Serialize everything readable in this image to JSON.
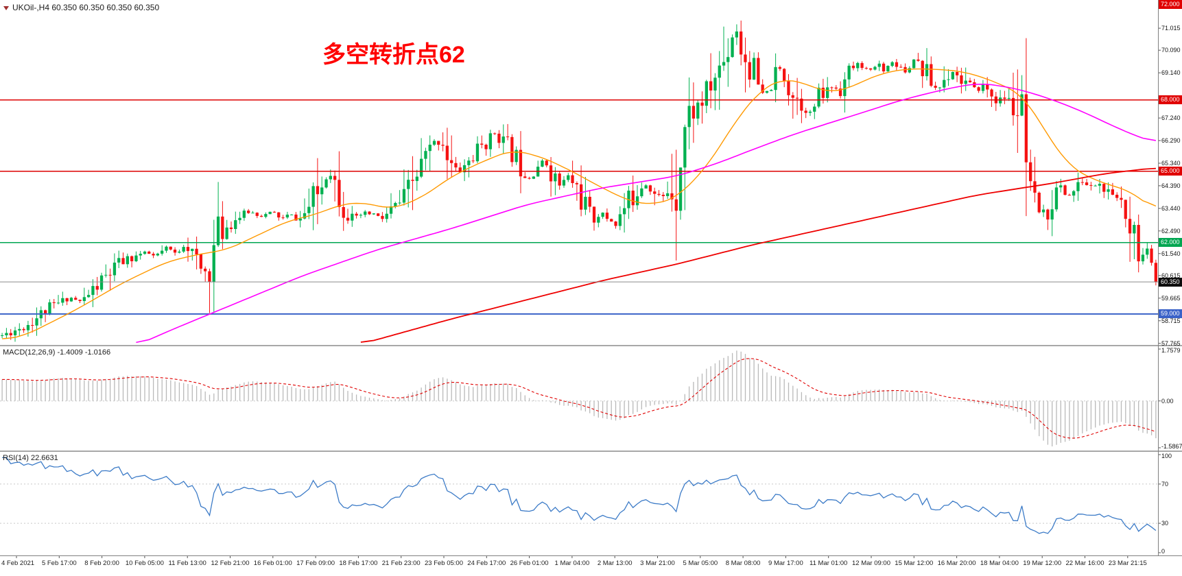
{
  "title_bar": {
    "symbol_title": "UKOil-,H4 60.350 60.350 60.350 60.350"
  },
  "annotation": {
    "text": "多空转折点62",
    "color": "#ff0000"
  },
  "colors": {
    "up": "#00b050",
    "down": "#f51212",
    "macd_hist": "#b9b9b9",
    "macd_signal": "#e00000",
    "rsi_line": "#3c7bc7",
    "bid_line": "#8a8a8a",
    "level_dotted": "#c8c8c8",
    "axis_tick": "#555555",
    "badge_black": "#0d0d0d"
  },
  "main_axis": {
    "labels": [
      {
        "text": "71.015",
        "price": 71.015
      },
      {
        "text": "70.090",
        "price": 70.09
      },
      {
        "text": "69.140",
        "price": 69.14
      },
      {
        "text": "67.240",
        "price": 67.24
      },
      {
        "text": "66.290",
        "price": 66.29
      },
      {
        "text": "65.340",
        "price": 65.34
      },
      {
        "text": "64.390",
        "price": 64.39
      },
      {
        "text": "63.440",
        "price": 63.44
      },
      {
        "text": "62.490",
        "price": 62.49
      },
      {
        "text": "61.540",
        "price": 61.54
      },
      {
        "text": "60.615",
        "price": 60.615
      },
      {
        "text": "59.665",
        "price": 59.665
      },
      {
        "text": "58.715",
        "price": 58.715
      },
      {
        "text": "57.765",
        "price": 57.765
      }
    ],
    "badges": [
      {
        "text": "72.000",
        "price": 72.0,
        "color": "#e00000"
      },
      {
        "text": "68.000",
        "price": 68.0,
        "color": "#e00000"
      },
      {
        "text": "65.000",
        "price": 65.0,
        "color": "#e00000"
      },
      {
        "text": "62.000",
        "price": 62.0,
        "color": "#00a651"
      },
      {
        "text": "60.350",
        "price": 60.35,
        "color": "#0d0d0d"
      },
      {
        "text": "59.000",
        "price": 59.0,
        "color": "#3a62c8"
      }
    ]
  },
  "macd_panel": {
    "label": "MACD(12,26,9) -1.4009 -1.0166",
    "axis_labels": [
      {
        "text": "1.7579",
        "value": 1.7579
      },
      {
        "text": "0.00",
        "value": 0
      },
      {
        "text": "-1.5867",
        "value": -1.5867
      }
    ]
  },
  "rsi_panel": {
    "label": "RSI(14) 22.6631",
    "axis_labels": [
      {
        "text": "100",
        "value": 100
      },
      {
        "text": "70",
        "value": 70
      },
      {
        "text": "30",
        "value": 30
      },
      {
        "text": "0",
        "value": 0
      }
    ]
  },
  "time_axis": {
    "labels": [
      "4 Feb 2021",
      "5 Feb 17:00",
      "8 Feb 20:00",
      "10 Feb 05:00",
      "11 Feb 13:00",
      "12 Feb 21:00",
      "16 Feb 01:00",
      "17 Feb 09:00",
      "18 Feb 17:00",
      "21 Feb 23:00",
      "23 Feb 05:00",
      "24 Feb 17:00",
      "26 Feb 01:00",
      "1 Mar 04:00",
      "2 Mar 13:00",
      "3 Mar 21:00",
      "5 Mar 05:00",
      "8 Mar 08:00",
      "9 Mar 17:00",
      "11 Mar 01:00",
      "12 Mar 09:00",
      "15 Mar 12:00",
      "16 Mar 20:00",
      "18 Mar 04:00",
      "19 Mar 12:00",
      "22 Mar 16:00",
      "23 Mar 21:15"
    ]
  },
  "chart_data": {
    "type": "candlestick",
    "symbol": "UKOil-",
    "timeframe": "H4",
    "bar_count": 268,
    "ylim": [
      57.7,
      72.2
    ],
    "current_price": 60.35,
    "price_path": [
      [
        0,
        58.1
      ],
      [
        0.005,
        58.2
      ],
      [
        0.02,
        58.5
      ],
      [
        0.039,
        59.2
      ],
      [
        0.059,
        59.7
      ],
      [
        0.068,
        59.5
      ],
      [
        0.085,
        60.3
      ],
      [
        0.101,
        61.1
      ],
      [
        0.114,
        61.4
      ],
      [
        0.124,
        61.6
      ],
      [
        0.133,
        61.4
      ],
      [
        0.143,
        61.8
      ],
      [
        0.151,
        61.5
      ],
      [
        0.159,
        62.0
      ],
      [
        0.168,
        61.2
      ],
      [
        0.174,
        60.7
      ],
      [
        0.18,
        61.0
      ],
      [
        0.187,
        62.4
      ],
      [
        0.195,
        62.7
      ],
      [
        0.205,
        63.1
      ],
      [
        0.215,
        63.3
      ],
      [
        0.224,
        63.1
      ],
      [
        0.234,
        63.3
      ],
      [
        0.242,
        63.0
      ],
      [
        0.25,
        63.2
      ],
      [
        0.257,
        62.9
      ],
      [
        0.265,
        63.4
      ],
      [
        0.275,
        64.2
      ],
      [
        0.283,
        65.1
      ],
      [
        0.291,
        64.3
      ],
      [
        0.298,
        63.5
      ],
      [
        0.304,
        62.9
      ],
      [
        0.312,
        63.2
      ],
      [
        0.322,
        63.2
      ],
      [
        0.33,
        63.0
      ],
      [
        0.338,
        63.4
      ],
      [
        0.348,
        63.8
      ],
      [
        0.357,
        64.6
      ],
      [
        0.366,
        65.5
      ],
      [
        0.374,
        66.1
      ],
      [
        0.382,
        66.3
      ],
      [
        0.388,
        65.3
      ],
      [
        0.395,
        64.9
      ],
      [
        0.402,
        65.3
      ],
      [
        0.41,
        65.7
      ],
      [
        0.418,
        66.2
      ],
      [
        0.427,
        66.6
      ],
      [
        0.435,
        66.2
      ],
      [
        0.442,
        65.8
      ],
      [
        0.45,
        65.2
      ],
      [
        0.457,
        64.7
      ],
      [
        0.463,
        65.2
      ],
      [
        0.47,
        65.5
      ],
      [
        0.477,
        64.9
      ],
      [
        0.483,
        64.4
      ],
      [
        0.491,
        64.8
      ],
      [
        0.498,
        64.3
      ],
      [
        0.506,
        63.5
      ],
      [
        0.512,
        62.9
      ],
      [
        0.519,
        63.3
      ],
      [
        0.525,
        63.0
      ],
      [
        0.532,
        62.8
      ],
      [
        0.539,
        63.4
      ],
      [
        0.546,
        63.9
      ],
      [
        0.553,
        64.4
      ],
      [
        0.56,
        64.5
      ],
      [
        0.566,
        64.0
      ],
      [
        0.573,
        63.9
      ],
      [
        0.579,
        64.3
      ],
      [
        0.584,
        64.4
      ],
      [
        0.589,
        66.2
      ],
      [
        0.593,
        67.2
      ],
      [
        0.6,
        67.6
      ],
      [
        0.606,
        67.9
      ],
      [
        0.613,
        68.4
      ],
      [
        0.619,
        69.1
      ],
      [
        0.626,
        69.7
      ],
      [
        0.632,
        70.6
      ],
      [
        0.636,
        71.1
      ],
      [
        0.64,
        70.2
      ],
      [
        0.644,
        69.8
      ],
      [
        0.649,
        69.4
      ],
      [
        0.655,
        68.6
      ],
      [
        0.661,
        68.0
      ],
      [
        0.668,
        68.9
      ],
      [
        0.674,
        69.3
      ],
      [
        0.681,
        68.7
      ],
      [
        0.687,
        68.2
      ],
      [
        0.694,
        67.8
      ],
      [
        0.7,
        67.4
      ],
      [
        0.707,
        68.0
      ],
      [
        0.713,
        68.3
      ],
      [
        0.72,
        68.6
      ],
      [
        0.726,
        68.4
      ],
      [
        0.733,
        69.0
      ],
      [
        0.739,
        69.5
      ],
      [
        0.746,
        69.4
      ],
      [
        0.752,
        69.2
      ],
      [
        0.759,
        69.5
      ],
      [
        0.765,
        69.3
      ],
      [
        0.772,
        69.6
      ],
      [
        0.778,
        69.4
      ],
      [
        0.785,
        69.2
      ],
      [
        0.791,
        69.8
      ],
      [
        0.798,
        69.3
      ],
      [
        0.804,
        68.8
      ],
      [
        0.811,
        68.4
      ],
      [
        0.817,
        68.9
      ],
      [
        0.824,
        69.2
      ],
      [
        0.83,
        68.9
      ],
      [
        0.837,
        68.7
      ],
      [
        0.843,
        68.4
      ],
      [
        0.85,
        68.6
      ],
      [
        0.856,
        68.3
      ],
      [
        0.863,
        67.9
      ],
      [
        0.869,
        68.1
      ],
      [
        0.876,
        67.8
      ],
      [
        0.882,
        67.3
      ],
      [
        0.887,
        65.0
      ],
      [
        0.892,
        62.9
      ],
      [
        0.897,
        63.4
      ],
      [
        0.904,
        63.0
      ],
      [
        0.91,
        63.8
      ],
      [
        0.917,
        64.4
      ],
      [
        0.923,
        63.9
      ],
      [
        0.93,
        64.2
      ],
      [
        0.936,
        64.6
      ],
      [
        0.943,
        64.3
      ],
      [
        0.949,
        64.5
      ],
      [
        0.956,
        64.2
      ],
      [
        0.962,
        63.8
      ],
      [
        0.969,
        63.9
      ],
      [
        0.975,
        63.3
      ],
      [
        0.982,
        62.5
      ],
      [
        0.988,
        61.7
      ],
      [
        0.993,
        60.9
      ],
      [
        1,
        60.35
      ]
    ],
    "moving_averages": [
      {
        "name": "ma-fast",
        "color": "#ff9900",
        "width": 1.4,
        "points": [
          [
            0,
            57.9
          ],
          [
            0.02,
            58.1
          ],
          [
            0.065,
            59.2
          ],
          [
            0.104,
            60.3
          ],
          [
            0.143,
            61.2
          ],
          [
            0.169,
            61.5
          ],
          [
            0.195,
            61.7
          ],
          [
            0.221,
            62.3
          ],
          [
            0.247,
            62.9
          ],
          [
            0.273,
            63.2
          ],
          [
            0.293,
            63.6
          ],
          [
            0.312,
            63.7
          ],
          [
            0.338,
            63.4
          ],
          [
            0.364,
            63.9
          ],
          [
            0.39,
            64.8
          ],
          [
            0.416,
            65.4
          ],
          [
            0.442,
            65.9
          ],
          [
            0.468,
            65.6
          ],
          [
            0.494,
            65.0
          ],
          [
            0.52,
            64.3
          ],
          [
            0.546,
            63.7
          ],
          [
            0.566,
            63.6
          ],
          [
            0.585,
            63.9
          ],
          [
            0.611,
            65.2
          ],
          [
            0.637,
            67.2
          ],
          [
            0.657,
            68.4
          ],
          [
            0.676,
            68.9
          ],
          [
            0.696,
            68.7
          ],
          [
            0.715,
            68.3
          ],
          [
            0.735,
            68.5
          ],
          [
            0.755,
            69.0
          ],
          [
            0.78,
            69.3
          ],
          [
            0.807,
            69.3
          ],
          [
            0.833,
            69.2
          ],
          [
            0.859,
            68.8
          ],
          [
            0.885,
            68.2
          ],
          [
            0.904,
            66.7
          ],
          [
            0.923,
            65.3
          ],
          [
            0.943,
            64.7
          ],
          [
            0.962,
            64.4
          ],
          [
            0.981,
            64.1
          ],
          [
            1,
            63.3
          ]
        ]
      },
      {
        "name": "ma-mid",
        "color": "#ff00ff",
        "width": 1.6,
        "points": [
          [
            0.117,
            57.7
          ],
          [
            0.15,
            58.4
          ],
          [
            0.195,
            59.3
          ],
          [
            0.26,
            60.6
          ],
          [
            0.325,
            61.7
          ],
          [
            0.39,
            62.6
          ],
          [
            0.455,
            63.6
          ],
          [
            0.52,
            64.3
          ],
          [
            0.585,
            64.8
          ],
          [
            0.618,
            65.3
          ],
          [
            0.65,
            65.9
          ],
          [
            0.683,
            66.5
          ],
          [
            0.715,
            67.0
          ],
          [
            0.748,
            67.5
          ],
          [
            0.78,
            68.0
          ],
          [
            0.813,
            68.4
          ],
          [
            0.833,
            68.6
          ],
          [
            0.846,
            68.7
          ],
          [
            0.865,
            68.6
          ],
          [
            0.885,
            68.4
          ],
          [
            0.911,
            68.0
          ],
          [
            0.937,
            67.5
          ],
          [
            0.963,
            66.9
          ],
          [
            0.982,
            66.5
          ],
          [
            1,
            66.2
          ]
        ]
      },
      {
        "name": "ma-slow",
        "color": "#ee0000",
        "width": 1.8,
        "points": [
          [
            0.312,
            57.75
          ],
          [
            0.39,
            58.8
          ],
          [
            0.455,
            59.6
          ],
          [
            0.52,
            60.4
          ],
          [
            0.585,
            61.1
          ],
          [
            0.65,
            61.9
          ],
          [
            0.715,
            62.6
          ],
          [
            0.78,
            63.3
          ],
          [
            0.845,
            64.0
          ],
          [
            0.911,
            64.5
          ],
          [
            0.956,
            64.9
          ],
          [
            1,
            65.15
          ]
        ]
      }
    ],
    "horizontal_lines": [
      {
        "price": 68.0,
        "color": "#dd0000",
        "width": 1.5
      },
      {
        "price": 65.0,
        "color": "#dd0000",
        "width": 1.5
      },
      {
        "price": 62.0,
        "color": "#00a651",
        "width": 1.5
      },
      {
        "price": 59.0,
        "color": "#3a62c8",
        "width": 2
      }
    ],
    "macd": {
      "fast": 12,
      "slow": 26,
      "signal": 9,
      "value": -1.4009,
      "signal_value": -1.0166,
      "ylim": [
        -1.5867,
        1.7579
      ]
    },
    "rsi": {
      "period": 14,
      "value": 22.6631,
      "levels": [
        70,
        30
      ],
      "ylim": [
        0,
        100
      ]
    }
  }
}
